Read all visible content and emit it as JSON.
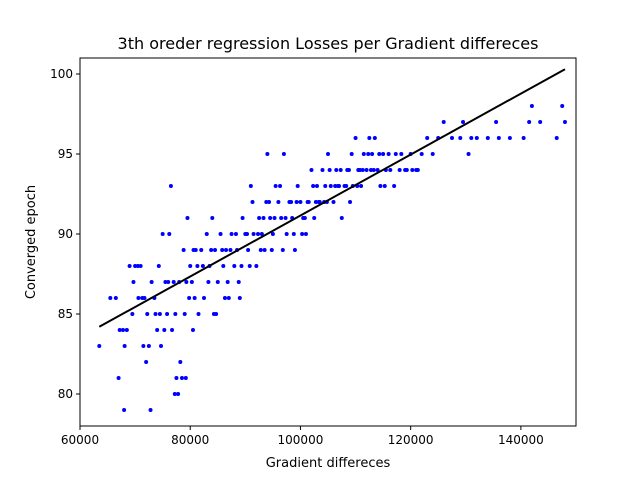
{
  "chart_data": {
    "type": "scatter",
    "title": "3th oreder regression Losses per Gradient differeces",
    "xlabel": "Gradient differeces",
    "ylabel": "Converged epoch",
    "xlim": [
      60000,
      150000
    ],
    "ylim": [
      78,
      101
    ],
    "x_ticks": [
      60000,
      80000,
      100000,
      120000,
      140000
    ],
    "y_ticks": [
      80,
      85,
      90,
      95,
      100
    ],
    "grid": false,
    "legend": "none",
    "colors": {
      "points": "#0000ff",
      "fit_line": "#000000"
    },
    "fit_line": {
      "x": [
        63500,
        148000
      ],
      "y": [
        84.2,
        100.3
      ]
    },
    "series": [
      {
        "values": [
          [
            63500,
            83
          ],
          [
            65500,
            86
          ],
          [
            66500,
            86
          ],
          [
            67000,
            81
          ],
          [
            67200,
            84
          ],
          [
            67800,
            84
          ],
          [
            68000,
            79
          ],
          [
            68100,
            83
          ],
          [
            68500,
            84
          ],
          [
            69000,
            88
          ],
          [
            69500,
            85
          ],
          [
            69700,
            87
          ],
          [
            70000,
            88
          ],
          [
            70500,
            88
          ],
          [
            70600,
            86
          ],
          [
            71000,
            88
          ],
          [
            71300,
            86
          ],
          [
            71500,
            83
          ],
          [
            71700,
            86
          ],
          [
            72000,
            82
          ],
          [
            72200,
            85
          ],
          [
            72500,
            83
          ],
          [
            72800,
            79
          ],
          [
            73000,
            87
          ],
          [
            73500,
            86
          ],
          [
            73700,
            85
          ],
          [
            74000,
            84
          ],
          [
            74300,
            88
          ],
          [
            74500,
            85
          ],
          [
            74700,
            83
          ],
          [
            75000,
            90
          ],
          [
            75300,
            84
          ],
          [
            75500,
            87
          ],
          [
            75800,
            85
          ],
          [
            76000,
            87
          ],
          [
            76200,
            90
          ],
          [
            76500,
            93
          ],
          [
            76700,
            84
          ],
          [
            77000,
            87
          ],
          [
            77200,
            80
          ],
          [
            77300,
            85
          ],
          [
            77500,
            81
          ],
          [
            77800,
            80
          ],
          [
            78000,
            87
          ],
          [
            78200,
            82
          ],
          [
            78500,
            81
          ],
          [
            78800,
            89
          ],
          [
            79000,
            85
          ],
          [
            79200,
            81
          ],
          [
            79500,
            91
          ],
          [
            79800,
            86
          ],
          [
            80000,
            88
          ],
          [
            80300,
            87
          ],
          [
            80500,
            84
          ],
          [
            80800,
            86
          ],
          [
            81000,
            89
          ],
          [
            81500,
            85
          ],
          [
            82000,
            89
          ],
          [
            82500,
            86
          ],
          [
            83000,
            90
          ],
          [
            83500,
            88
          ],
          [
            84000,
            91
          ],
          [
            84500,
            89
          ],
          [
            84700,
            85
          ],
          [
            85000,
            87
          ],
          [
            85500,
            90
          ],
          [
            86000,
            88
          ],
          [
            86500,
            89
          ],
          [
            87000,
            86
          ],
          [
            87500,
            90
          ],
          [
            88000,
            88
          ],
          [
            88500,
            89
          ],
          [
            89000,
            86
          ],
          [
            89500,
            91
          ],
          [
            90000,
            90
          ],
          [
            90500,
            89
          ],
          [
            91000,
            93
          ],
          [
            91500,
            90
          ],
          [
            92000,
            88
          ],
          [
            92500,
            91
          ],
          [
            93000,
            90
          ],
          [
            93500,
            89
          ],
          [
            93800,
            92
          ],
          [
            94000,
            95
          ],
          [
            94500,
            91
          ],
          [
            95000,
            90
          ],
          [
            95500,
            93
          ],
          [
            96000,
            92
          ],
          [
            96500,
            91
          ],
          [
            97000,
            95
          ],
          [
            97500,
            90
          ],
          [
            98000,
            92
          ],
          [
            98500,
            91
          ],
          [
            99000,
            89
          ],
          [
            99500,
            93
          ],
          [
            100000,
            92
          ],
          [
            100500,
            91
          ],
          [
            101000,
            90
          ],
          [
            101500,
            92
          ],
          [
            102000,
            94
          ],
          [
            102500,
            91
          ],
          [
            103000,
            93
          ],
          [
            103500,
            92
          ],
          [
            104000,
            94
          ],
          [
            104500,
            93
          ],
          [
            105000,
            95
          ],
          [
            105500,
            93
          ],
          [
            106000,
            92
          ],
          [
            106500,
            94
          ],
          [
            107000,
            93
          ],
          [
            107500,
            91
          ],
          [
            108000,
            93
          ],
          [
            108500,
            94
          ],
          [
            109000,
            92
          ],
          [
            109500,
            93
          ],
          [
            110000,
            96
          ],
          [
            110500,
            94
          ],
          [
            111000,
            93
          ],
          [
            111500,
            95
          ],
          [
            112000,
            94
          ],
          [
            112500,
            96
          ],
          [
            113000,
            95
          ],
          [
            113500,
            96
          ],
          [
            114000,
            94
          ],
          [
            114500,
            93
          ],
          [
            115000,
            95
          ],
          [
            115500,
            94
          ],
          [
            116000,
            95
          ],
          [
            117000,
            93
          ],
          [
            118000,
            94
          ],
          [
            119000,
            94
          ],
          [
            120000,
            95
          ],
          [
            121000,
            94
          ],
          [
            122000,
            95
          ],
          [
            123000,
            96
          ],
          [
            124000,
            95
          ],
          [
            125000,
            96
          ],
          [
            126000,
            97
          ],
          [
            127500,
            96
          ],
          [
            129000,
            96
          ],
          [
            129500,
            97
          ],
          [
            130500,
            95
          ],
          [
            131000,
            96
          ],
          [
            132000,
            96
          ],
          [
            134000,
            96
          ],
          [
            135500,
            97
          ],
          [
            136000,
            96
          ],
          [
            138000,
            96
          ],
          [
            140500,
            96
          ],
          [
            141500,
            97
          ],
          [
            142000,
            98
          ],
          [
            143500,
            97
          ],
          [
            146500,
            96
          ],
          [
            147500,
            98
          ],
          [
            148000,
            97
          ],
          [
            83800,
            89
          ],
          [
            84300,
            85
          ],
          [
            85800,
            89
          ],
          [
            86300,
            86
          ],
          [
            87300,
            89
          ],
          [
            88300,
            90
          ],
          [
            89300,
            88
          ],
          [
            90300,
            90
          ],
          [
            91300,
            92
          ],
          [
            92300,
            90
          ],
          [
            93300,
            91
          ],
          [
            94300,
            92
          ],
          [
            95300,
            91
          ],
          [
            96300,
            93
          ],
          [
            97300,
            91
          ],
          [
            98300,
            92
          ],
          [
            99300,
            92
          ],
          [
            100300,
            90
          ],
          [
            101300,
            92
          ],
          [
            102300,
            93
          ],
          [
            103300,
            92
          ],
          [
            104300,
            92
          ],
          [
            105300,
            94
          ],
          [
            106300,
            93
          ],
          [
            107300,
            94
          ],
          [
            108300,
            93
          ],
          [
            109300,
            95
          ],
          [
            110300,
            93
          ],
          [
            111300,
            94
          ],
          [
            112300,
            95
          ],
          [
            113300,
            94
          ],
          [
            114300,
            95
          ],
          [
            115300,
            93
          ],
          [
            116300,
            94
          ],
          [
            117300,
            95
          ],
          [
            118300,
            95
          ],
          [
            119300,
            94
          ],
          [
            120300,
            94
          ],
          [
            121300,
            94
          ],
          [
            79300,
            87
          ],
          [
            80600,
            89
          ],
          [
            81300,
            88
          ],
          [
            82300,
            88
          ],
          [
            83300,
            87
          ],
          [
            86800,
            87
          ],
          [
            88800,
            87
          ],
          [
            90800,
            88
          ],
          [
            92800,
            89
          ],
          [
            94800,
            89
          ],
          [
            96800,
            89
          ],
          [
            98800,
            90
          ],
          [
            100800,
            91
          ],
          [
            102800,
            92
          ],
          [
            104800,
            92
          ],
          [
            106800,
            93
          ],
          [
            108800,
            94
          ],
          [
            110800,
            94
          ],
          [
            112800,
            94
          ]
        ]
      }
    ]
  }
}
